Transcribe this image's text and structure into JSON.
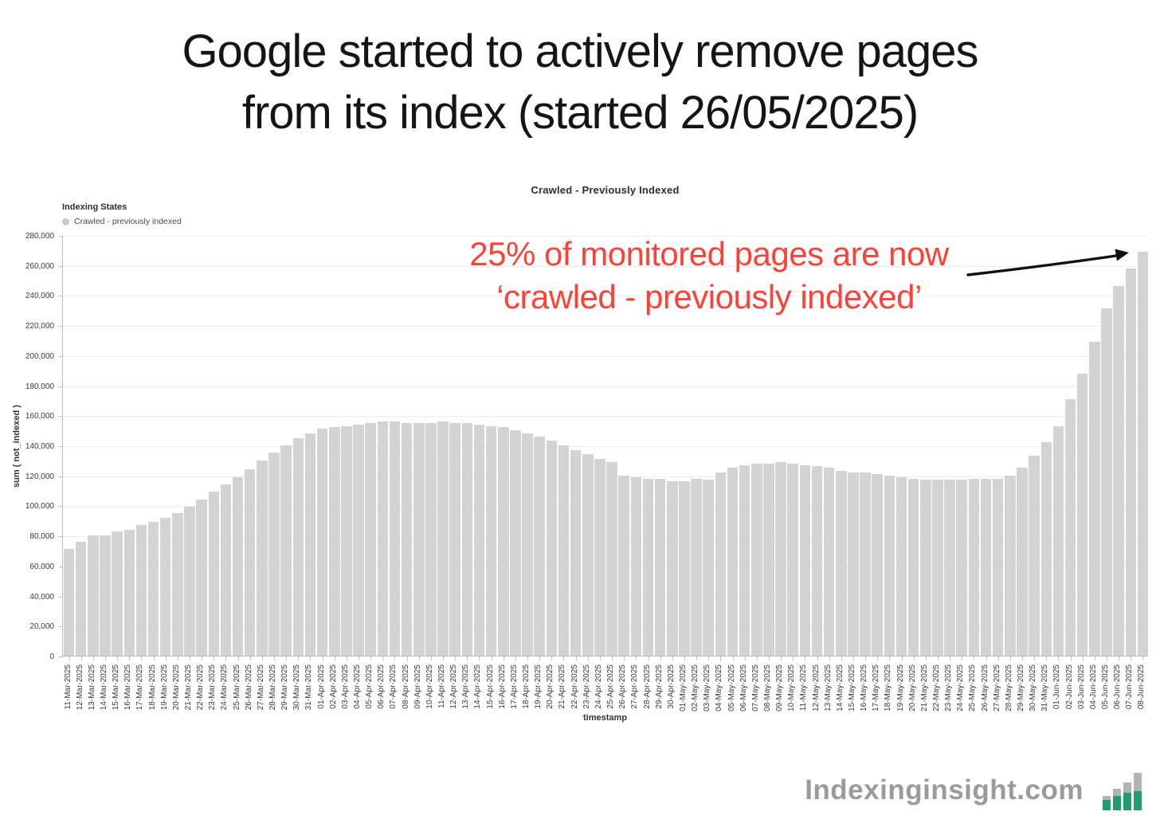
{
  "header": {
    "title_line1": "Google started to actively remove pages",
    "title_line2": "from its index (started 26/05/2025)"
  },
  "annotation": {
    "line1": "25% of monitored pages are now",
    "line2": "‘crawled - previously indexed’"
  },
  "footer": {
    "brand": "Indexinginsight.com"
  },
  "colors": {
    "annotation_red": "#fa4338",
    "bar_gray": "#d3d3d3",
    "logo_green": "#1f9d6d",
    "brand_gray": "#9b9b9b"
  },
  "chart_data": {
    "type": "bar",
    "title": "Crawled - Previously Indexed",
    "legend_title": "Indexing States",
    "legend_items": [
      {
        "label": "Crawled - previously indexed",
        "color": "#c9c9c9"
      }
    ],
    "xlabel": "timestamp",
    "ylabel": "sum ( not_indexed )",
    "ylim": [
      0,
      280000
    ],
    "ytick_step": 20000,
    "grid": true,
    "legend_position": "top-left",
    "bar_color": "#d3d3d3",
    "categories": [
      "11-Mar-2025",
      "12-Mar-2025",
      "13-Mar-2025",
      "14-Mar-2025",
      "15-Mar-2025",
      "16-Mar-2025",
      "17-Mar-2025",
      "18-Mar-2025",
      "19-Mar-2025",
      "20-Mar-2025",
      "21-Mar-2025",
      "22-Mar-2025",
      "23-Mar-2025",
      "24-Mar-2025",
      "25-Mar-2025",
      "26-Mar-2025",
      "27-Mar-2025",
      "28-Mar-2025",
      "29-Mar-2025",
      "30-Mar-2025",
      "31-Mar-2025",
      "01-Apr-2025",
      "02-Apr-2025",
      "03-Apr-2025",
      "04-Apr-2025",
      "05-Apr-2025",
      "06-Apr-2025",
      "07-Apr-2025",
      "08-Apr-2025",
      "09-Apr-2025",
      "10-Apr-2025",
      "11-Apr-2025",
      "12-Apr-2025",
      "13-Apr-2025",
      "14-Apr-2025",
      "15-Apr-2025",
      "16-Apr-2025",
      "17-Apr-2025",
      "18-Apr-2025",
      "19-Apr-2025",
      "20-Apr-2025",
      "21-Apr-2025",
      "22-Apr-2025",
      "23-Apr-2025",
      "24-Apr-2025",
      "25-Apr-2025",
      "26-Apr-2025",
      "27-Apr-2025",
      "28-Apr-2025",
      "29-Apr-2025",
      "30-Apr-2025",
      "01-May-2025",
      "02-May-2025",
      "03-May-2025",
      "04-May-2025",
      "05-May-2025",
      "06-May-2025",
      "07-May-2025",
      "08-May-2025",
      "09-May-2025",
      "10-May-2025",
      "11-May-2025",
      "12-May-2025",
      "13-May-2025",
      "14-May-2025",
      "15-May-2025",
      "16-May-2025",
      "17-May-2025",
      "18-May-2025",
      "19-May-2025",
      "20-May-2025",
      "21-May-2025",
      "22-May-2025",
      "23-May-2025",
      "24-May-2025",
      "25-May-2025",
      "26-May-2025",
      "27-May-2025",
      "28-May-2025",
      "29-May-2025",
      "30-May-2025",
      "31-May-2025",
      "01-Jun-2025",
      "02-Jun-2025",
      "03-Jun-2025",
      "04-Jun-2025",
      "05-Jun-2025",
      "06-Jun-2025",
      "07-Jun-2025",
      "08-Jun-2025"
    ],
    "values": [
      71000,
      76000,
      80000,
      80000,
      83000,
      84000,
      87000,
      89000,
      92000,
      95000,
      99000,
      104000,
      109000,
      114000,
      119000,
      124000,
      130000,
      135000,
      140000,
      145000,
      148000,
      151000,
      152000,
      153000,
      154000,
      155000,
      156000,
      156000,
      155000,
      155000,
      155000,
      156000,
      155000,
      155000,
      154000,
      153000,
      152000,
      150000,
      148000,
      146000,
      143000,
      140000,
      137000,
      134000,
      131000,
      129000,
      120000,
      119000,
      118000,
      118000,
      116000,
      116000,
      118000,
      117000,
      122000,
      125000,
      127000,
      128000,
      128000,
      129000,
      128000,
      127000,
      126000,
      125000,
      123000,
      122000,
      122000,
      121000,
      120000,
      119000,
      118000,
      117000,
      117000,
      117000,
      117000,
      118000,
      118000,
      118000,
      120000,
      125000,
      133000,
      142000,
      153000,
      171000,
      188000,
      209000,
      231000,
      246000,
      258000,
      269000
    ]
  }
}
